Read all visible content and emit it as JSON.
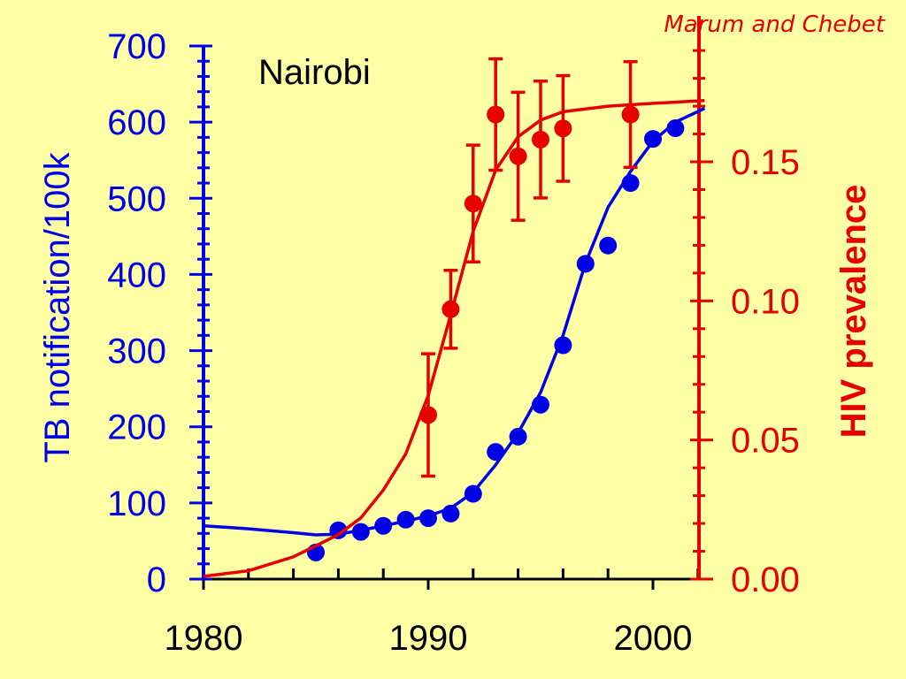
{
  "credit": "Marum and Chebet",
  "colors": {
    "background": "#ffffa6",
    "tb": "#0000e6",
    "hiv": "#e60000",
    "text": "#000000"
  },
  "chart_data": {
    "type": "scatter",
    "title": "Nairobi",
    "xlabel": "",
    "ylabel_left": "TB notification/100k",
    "ylabel_right": "HIV prevalence",
    "xlim": [
      1980,
      2002.3
    ],
    "ylim_left": [
      0,
      700
    ],
    "ylim_right": [
      0,
      0.19
    ],
    "x_ticks": [
      "1980",
      "1990",
      "2000"
    ],
    "y_left_ticks": [
      "0",
      "100",
      "200",
      "300",
      "400",
      "500",
      "600",
      "700"
    ],
    "y_right_ticks": [
      "0.00",
      "0.05",
      "0.10",
      "0.15"
    ],
    "grid": false,
    "series": [
      {
        "axis": "left",
        "color": "#0000e6",
        "points": [
          [
            1985,
            35
          ],
          [
            1986,
            64
          ],
          [
            1987,
            62
          ],
          [
            1988,
            70
          ],
          [
            1989,
            78
          ],
          [
            1990,
            80
          ],
          [
            1991,
            86
          ],
          [
            1992,
            112
          ],
          [
            1993,
            167
          ],
          [
            1994,
            187
          ],
          [
            1995,
            229
          ],
          [
            1996,
            307
          ],
          [
            1997,
            414
          ],
          [
            1998,
            438
          ],
          [
            1999,
            520
          ],
          [
            2000,
            578
          ],
          [
            2001,
            592
          ]
        ],
        "fit": [
          [
            1980,
            70
          ],
          [
            1982,
            66
          ],
          [
            1984,
            61
          ],
          [
            1985,
            58
          ],
          [
            1986,
            59
          ],
          [
            1987,
            64
          ],
          [
            1988,
            70
          ],
          [
            1989,
            76
          ],
          [
            1990,
            83
          ],
          [
            1991,
            93
          ],
          [
            1992,
            114
          ],
          [
            1993,
            150
          ],
          [
            1994,
            192
          ],
          [
            1995,
            245
          ],
          [
            1996,
            320
          ],
          [
            1997,
            415
          ],
          [
            1998,
            488
          ],
          [
            1999,
            535
          ],
          [
            2000,
            575
          ],
          [
            2001,
            600
          ],
          [
            2002.3,
            618
          ]
        ]
      },
      {
        "axis": "right",
        "color": "#e60000",
        "points": [
          [
            1990,
            0.059,
            0.022
          ],
          [
            1991,
            0.097,
            0.014
          ],
          [
            1992,
            0.135,
            0.021
          ],
          [
            1993,
            0.167,
            0.02
          ],
          [
            1994,
            0.152,
            0.023
          ],
          [
            1995,
            0.158,
            0.021
          ],
          [
            1996,
            0.162,
            0.019
          ],
          [
            1999,
            0.167,
            0.019
          ]
        ],
        "fit": [
          [
            1980,
            0.001
          ],
          [
            1982,
            0.003
          ],
          [
            1984,
            0.008
          ],
          [
            1986,
            0.016
          ],
          [
            1987,
            0.022
          ],
          [
            1988,
            0.032
          ],
          [
            1989,
            0.045
          ],
          [
            1990,
            0.066
          ],
          [
            1991,
            0.095
          ],
          [
            1992,
            0.125
          ],
          [
            1993,
            0.147
          ],
          [
            1994,
            0.159
          ],
          [
            1995,
            0.165
          ],
          [
            1996,
            0.168
          ],
          [
            1998,
            0.17
          ],
          [
            2000,
            0.171
          ],
          [
            2002.3,
            0.172
          ]
        ]
      }
    ]
  }
}
